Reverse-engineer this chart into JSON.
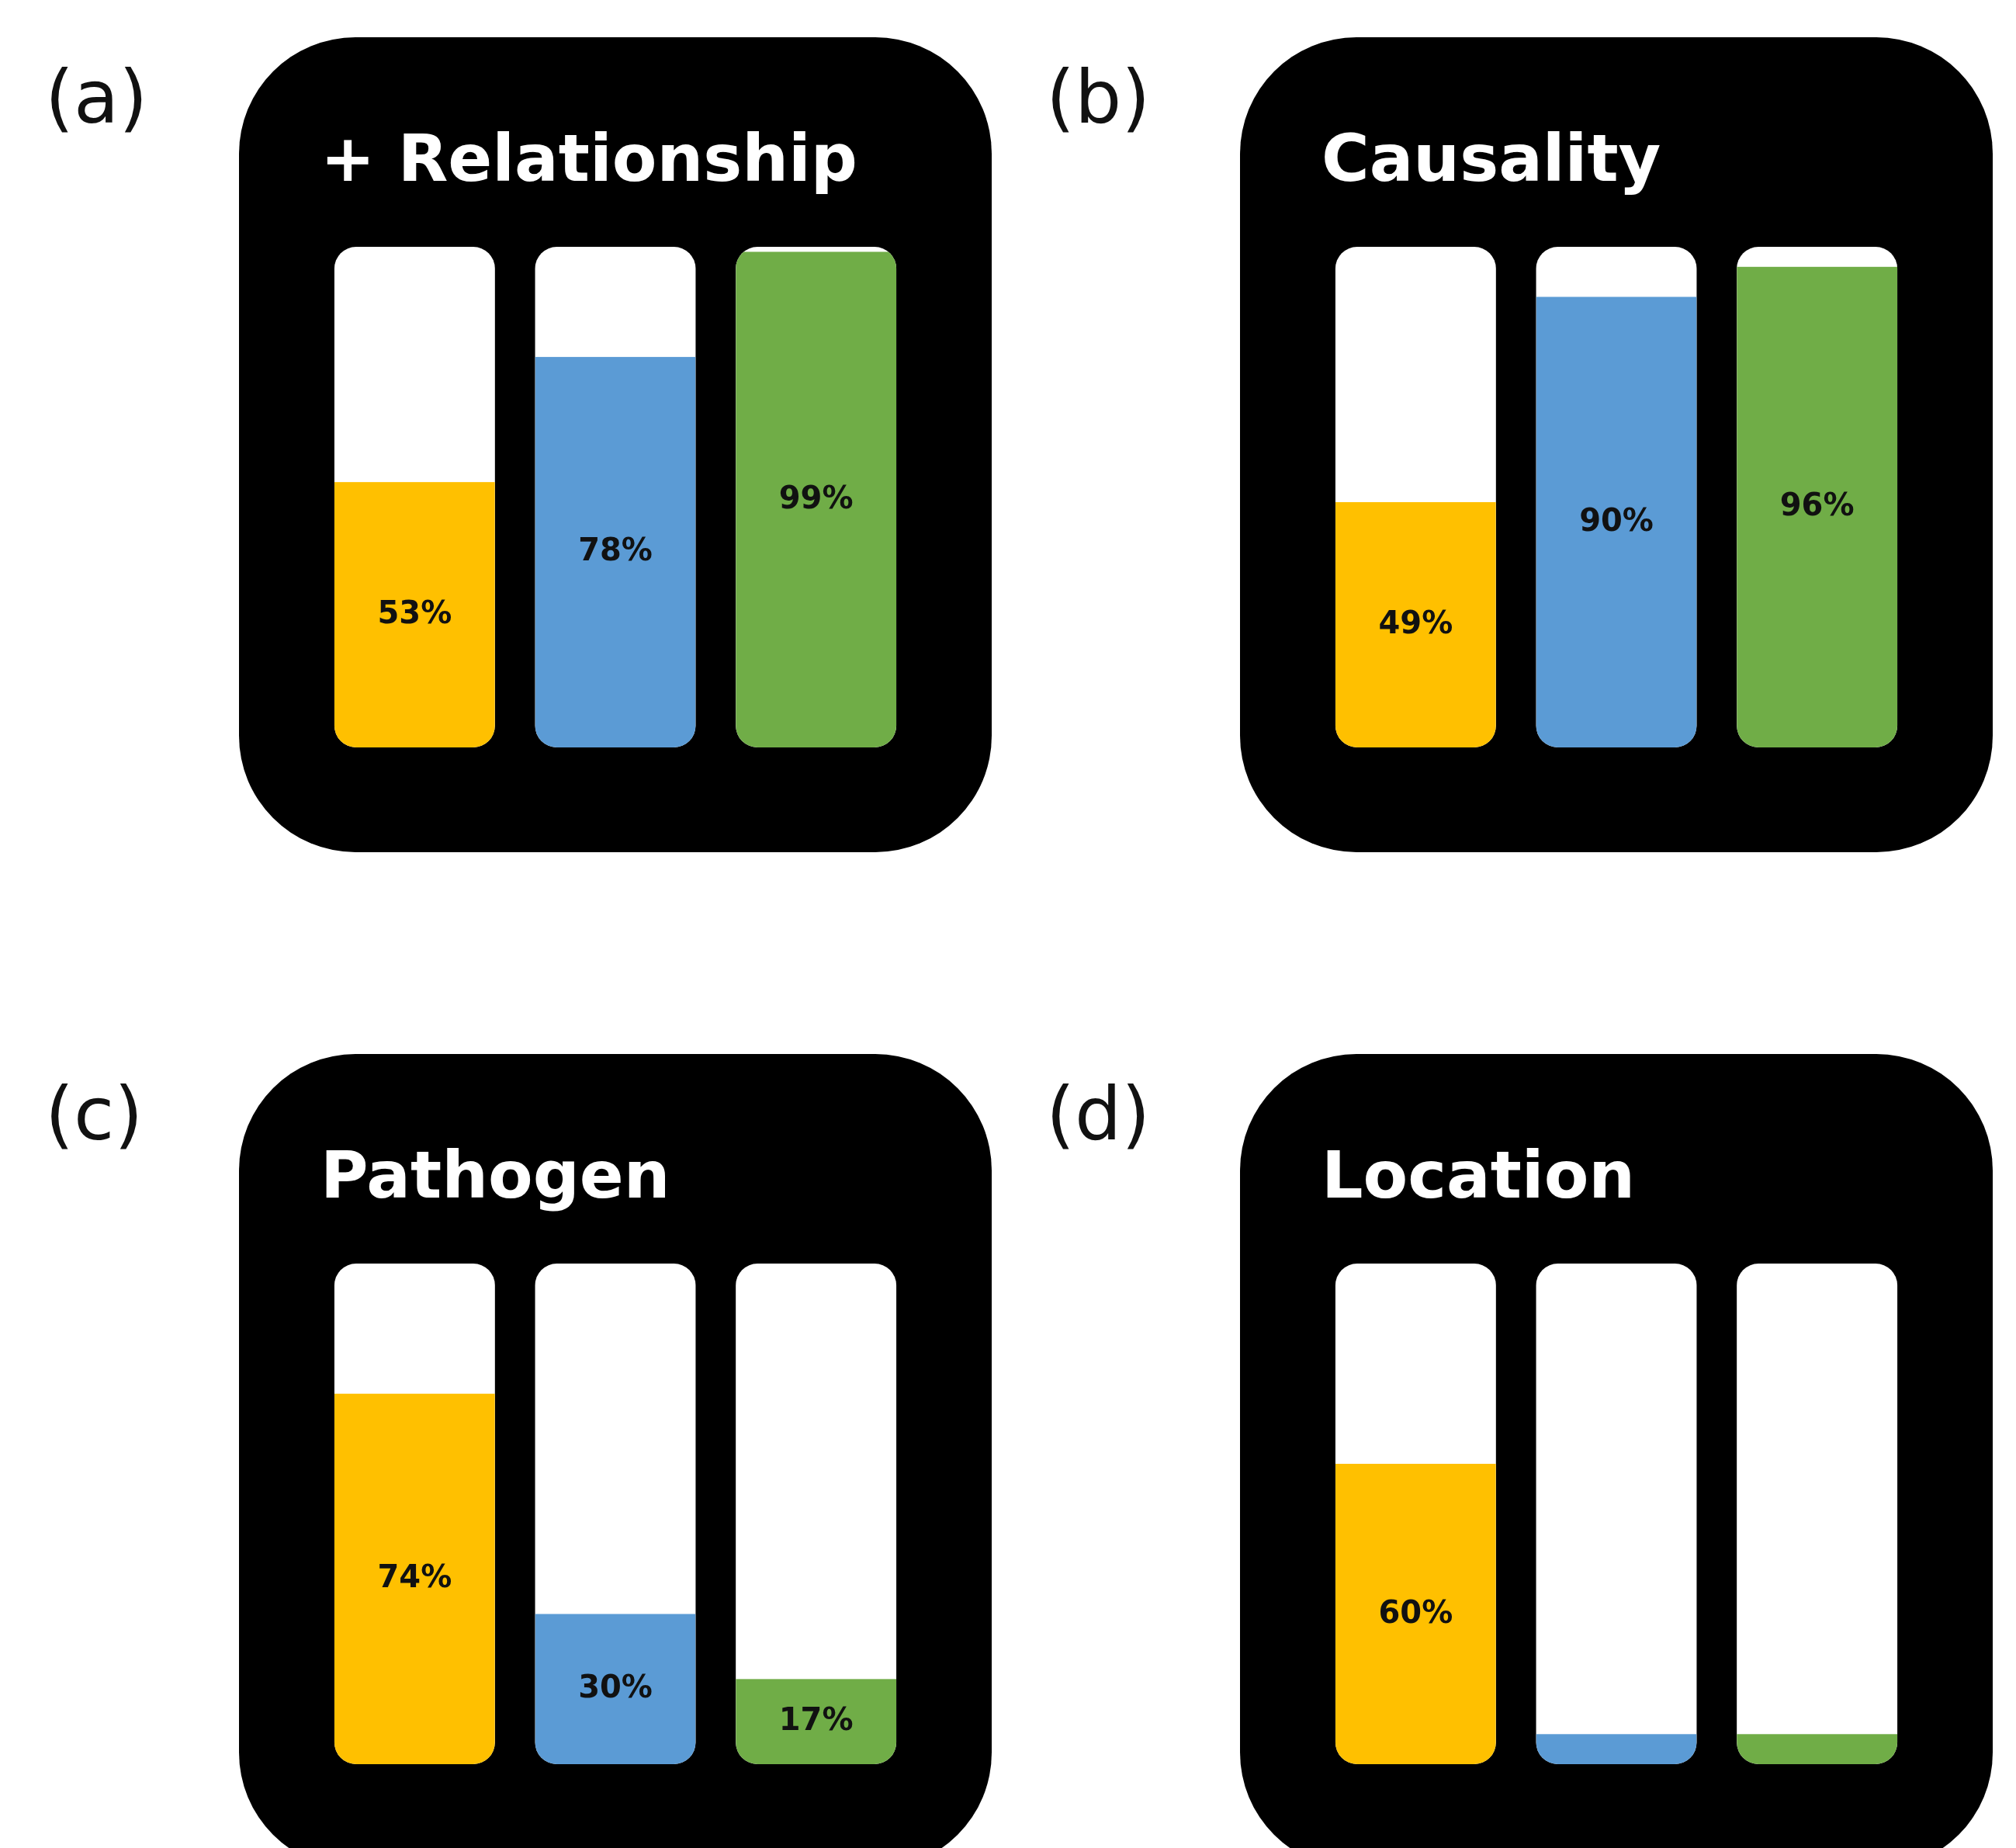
{
  "chart_data": [
    {
      "type": "bar",
      "title": "+ Relationship",
      "categories": [
        null,
        null,
        null
      ],
      "values": [
        53,
        78,
        99
      ],
      "colors": [
        "#ffc000",
        "#5b9bd5",
        "#70ad47"
      ],
      "value_labels": [
        "53%",
        "78%",
        "99%"
      ],
      "ylim": [
        0,
        100
      ],
      "annotations": [
        "(a)"
      ]
    },
    {
      "type": "bar",
      "title": "Causality",
      "categories": [
        null,
        null,
        null
      ],
      "values": [
        49,
        90,
        96
      ],
      "colors": [
        "#ffc000",
        "#5b9bd5",
        "#70ad47"
      ],
      "value_labels": [
        "49%",
        "90%",
        "96%"
      ],
      "ylim": [
        0,
        100
      ],
      "annotations": [
        "(b)"
      ]
    },
    {
      "type": "bar",
      "title": "Pathogen",
      "categories": [
        null,
        null,
        null
      ],
      "values": [
        74,
        30,
        17
      ],
      "colors": [
        "#ffc000",
        "#5b9bd5",
        "#70ad47"
      ],
      "value_labels": [
        "74%",
        "30%",
        "17%"
      ],
      "ylim": [
        0,
        100
      ],
      "annotations": [
        "(c)"
      ]
    },
    {
      "type": "bar",
      "title": "Location",
      "categories": [
        null,
        null,
        null
      ],
      "values": [
        60,
        6,
        6
      ],
      "colors": [
        "#ffc000",
        "#5b9bd5",
        "#70ad47"
      ],
      "value_labels": [
        "60%",
        null,
        null
      ],
      "ylim": [
        0,
        100
      ],
      "annotations": [
        "(d)"
      ]
    }
  ]
}
